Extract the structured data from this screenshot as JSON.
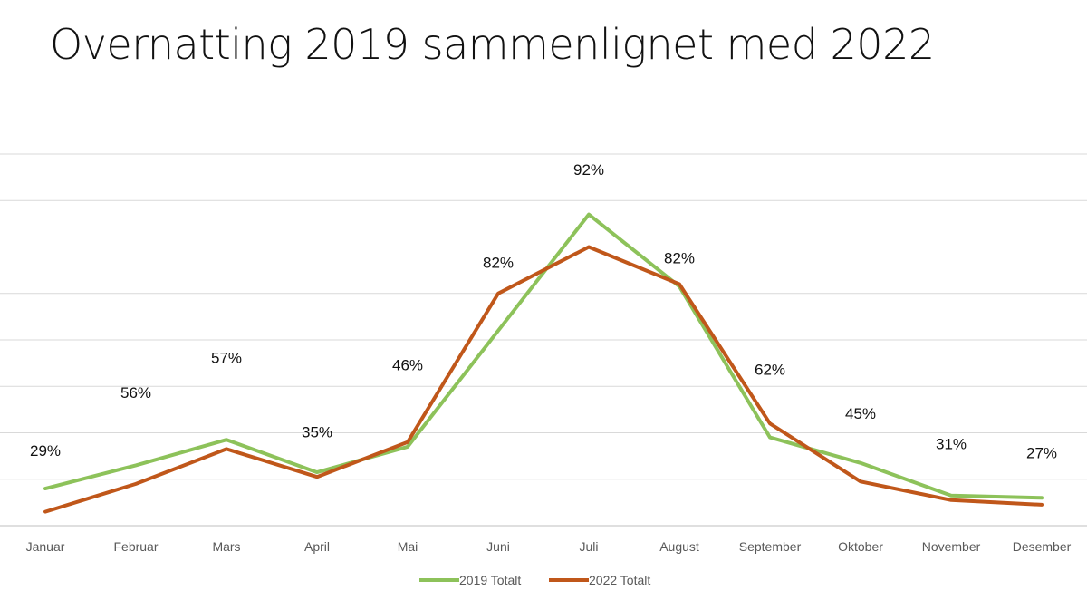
{
  "title": "Overnatting 2019 sammenlignet med 2022",
  "chart_data": {
    "type": "line",
    "title": "",
    "categories": [
      "Januar",
      "Februar",
      "Mars",
      "April",
      "Mai",
      "Juni",
      "Juli",
      "August",
      "September",
      "Oktober",
      "November",
      "Desember"
    ],
    "series": [
      {
        "name": "2019 Totalt",
        "color": "#8DC25A",
        "values": [
          16,
          26,
          37,
          23,
          34,
          84,
          134,
          103,
          38,
          27,
          13,
          12
        ]
      },
      {
        "name": "2022 Totalt",
        "color": "#C0571A",
        "values": [
          6,
          18,
          33,
          21,
          36,
          100,
          120,
          104,
          44,
          19,
          11,
          9
        ]
      }
    ],
    "data_labels": [
      "29%",
      "56%",
      "57%",
      "35%",
      "46%",
      "82%",
      "92%",
      "82%",
      "62%",
      "45%",
      "31%",
      "27%"
    ],
    "data_label_values": [
      30,
      55,
      70,
      38,
      67,
      111,
      151,
      113,
      65,
      46,
      33,
      29
    ],
    "ylim": [
      0,
      160
    ],
    "grid": true,
    "legend": "bottom"
  }
}
